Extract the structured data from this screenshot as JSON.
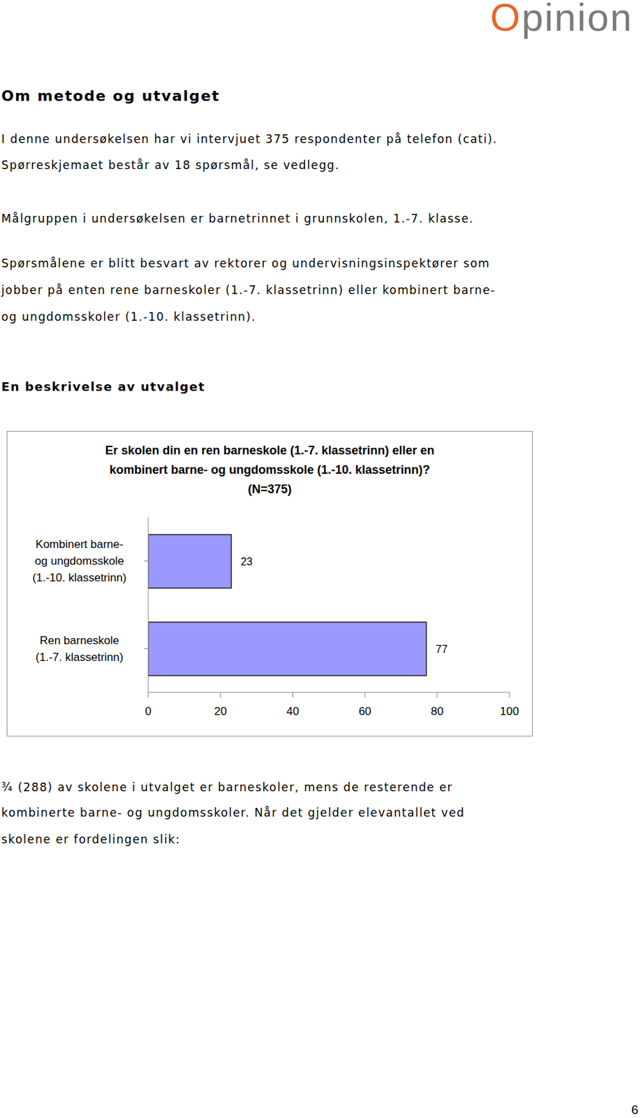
{
  "header": {
    "logo": [
      "O",
      "pinion"
    ]
  },
  "section_title": "Om metode og utvalget",
  "paragraphs": [
    [
      "I denne undersøkelsen har vi intervjuet 375 respondenter på telefon (cati).",
      "Spørreskjemaet består av 18 spørsmål, se vedlegg."
    ],
    [
      "Målgruppen i undersøkelsen er barnetrinnet i grunnskolen, 1.-7. klasse."
    ],
    [
      "Spørsmålene er blitt besvart av rektorer og undervisningsinspektører som",
      "jobber på enten rene barneskoler (1.-7. klassetrinn) eller kombinert barne-",
      "og ungdomsskoler (1.-10. klassetrinn)."
    ]
  ],
  "subsection_title": "En beskrivelse av utvalget",
  "chart_data": {
    "type": "bar",
    "orientation": "horizontal",
    "title": [
      "Er skolen din en ren barneskole (1.-7. klassetrinn) eller en",
      "kombinert barne- og ungdomsskole (1.-10. klassetrinn)?",
      "(N=375)"
    ],
    "categories": [
      "Kombinert barne-\nog ungdomsskole\n(1.-10. klassetrinn)",
      "Ren barneskole\n(1.-7. klassetrinn)"
    ],
    "values": [
      23,
      77
    ],
    "color": "#9999ff",
    "data_labels": true,
    "xlim": [
      0,
      100
    ],
    "xticks": [
      0,
      20,
      40,
      60,
      80,
      100
    ],
    "grid": false
  },
  "closing_paragraph": [
    "¾ (288) av skolene i utvalget er barneskoler, mens de resterende er",
    "kombinerte barne- og ungdomsskoler. Når det gjelder elevantallet ved",
    "skolene er fordelingen slik:"
  ],
  "page_number": "6"
}
